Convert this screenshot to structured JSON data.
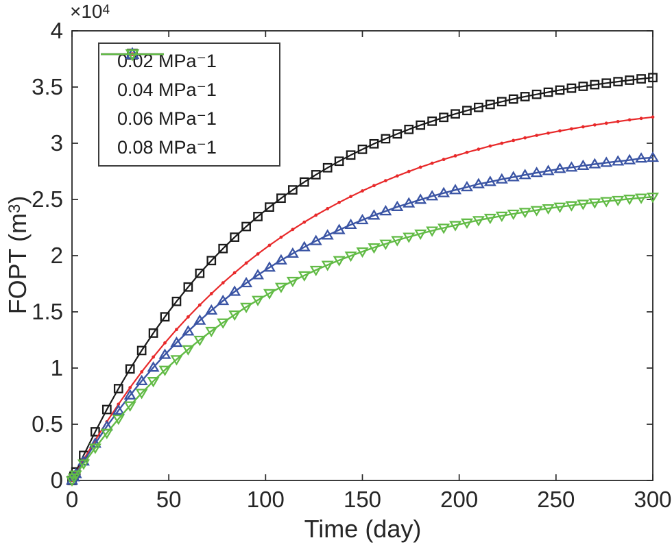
{
  "figure": {
    "background": "#ffffff",
    "axis_color": "#262626",
    "tick_label_color": "#262626"
  },
  "labels": {
    "x": "Time (day)",
    "y_prefix": "FOPT (m",
    "y_sup": "3",
    "y_suffix": ")",
    "offset_prefix": "×10",
    "offset_sup": "4"
  },
  "chart_data": {
    "type": "line",
    "title": "",
    "xlabel": "Time (day)",
    "ylabel": "FOPT (m³)",
    "offset_label": "×10⁴",
    "xlim": [
      0,
      300
    ],
    "ylim": [
      0,
      40000
    ],
    "x_ticks": [
      0,
      50,
      100,
      150,
      200,
      250,
      300
    ],
    "y_ticks": [
      0,
      5000,
      10000,
      15000,
      20000,
      25000,
      30000,
      35000,
      40000
    ],
    "y_tick_labels": [
      "0",
      "0.5",
      "1",
      "1.5",
      "2",
      "2.5",
      "3",
      "3.5",
      "4"
    ],
    "grid": false,
    "legend_position": "top-left-inside",
    "x": [
      0,
      1,
      2,
      6,
      12,
      18,
      24,
      30,
      36,
      42,
      48,
      54,
      60,
      66,
      72,
      78,
      84,
      90,
      96,
      102,
      108,
      114,
      120,
      126,
      132,
      138,
      144,
      150,
      156,
      162,
      168,
      174,
      180,
      186,
      192,
      198,
      204,
      210,
      216,
      222,
      228,
      234,
      240,
      246,
      252,
      258,
      264,
      270,
      276,
      282,
      288,
      294,
      300
    ],
    "series": [
      {
        "name": "0.02 MPa⁻1",
        "color": "#1a1a1a",
        "marker": "square",
        "line_width": 2.2,
        "values": [
          0,
          380,
          760,
          2230,
          4330,
          6310,
          8170,
          9920,
          11560,
          13110,
          14560,
          15930,
          17210,
          18430,
          19560,
          20630,
          21640,
          22590,
          23480,
          24320,
          25110,
          25850,
          26550,
          27200,
          27820,
          28400,
          28950,
          29460,
          29950,
          30400,
          30830,
          31230,
          31610,
          31960,
          32300,
          32610,
          32910,
          33190,
          33450,
          33700,
          33930,
          34150,
          34350,
          34540,
          34730,
          34900,
          35060,
          35210,
          35350,
          35480,
          35610,
          35730,
          35840
        ]
      },
      {
        "name": "0.04 MPa⁻1",
        "color": "#e8292a",
        "marker": "dot",
        "line_width": 2.2,
        "values": [
          0,
          310,
          620,
          1840,
          3580,
          5220,
          6780,
          8260,
          9660,
          10980,
          12240,
          13430,
          14550,
          15610,
          16620,
          17580,
          18480,
          19340,
          20150,
          20920,
          21640,
          22330,
          22980,
          23600,
          24180,
          24740,
          25260,
          25760,
          26230,
          26670,
          27090,
          27490,
          27870,
          28220,
          28560,
          28880,
          29190,
          29470,
          29750,
          30000,
          30250,
          30480,
          30700,
          30900,
          31100,
          31280,
          31460,
          31630,
          31780,
          31930,
          32080,
          32210,
          32330
        ]
      },
      {
        "name": "0.06 MPa⁻1",
        "color": "#3a54a4",
        "marker": "triangle-up",
        "line_width": 2.4,
        "values": [
          0,
          290,
          580,
          1700,
          3290,
          4810,
          6230,
          7580,
          8850,
          10050,
          11190,
          12260,
          13270,
          14230,
          15130,
          15980,
          16800,
          17560,
          18270,
          18950,
          19590,
          20190,
          20760,
          21310,
          21810,
          22290,
          22750,
          23170,
          23580,
          23960,
          24340,
          24660,
          24980,
          25290,
          25570,
          25840,
          26100,
          26370,
          26570,
          26790,
          26990,
          27180,
          27370,
          27540,
          27730,
          27850,
          28000,
          28140,
          28270,
          28390,
          28500,
          28650,
          28720
        ]
      },
      {
        "name": "0.08 MPa⁻1",
        "color": "#62bb46",
        "marker": "triangle-down",
        "line_width": 2.4,
        "values": [
          0,
          250,
          510,
          1490,
          2900,
          4220,
          5480,
          6660,
          7780,
          8830,
          9830,
          10770,
          11660,
          12500,
          13290,
          14040,
          14750,
          15430,
          16050,
          16650,
          17210,
          17740,
          18240,
          18720,
          19170,
          19590,
          19990,
          20360,
          20720,
          21050,
          21370,
          21670,
          21950,
          22220,
          22470,
          22710,
          22930,
          23150,
          23350,
          23540,
          23720,
          23880,
          24040,
          24200,
          24340,
          24470,
          24600,
          24720,
          24840,
          24940,
          25050,
          25140,
          25230
        ]
      }
    ]
  }
}
